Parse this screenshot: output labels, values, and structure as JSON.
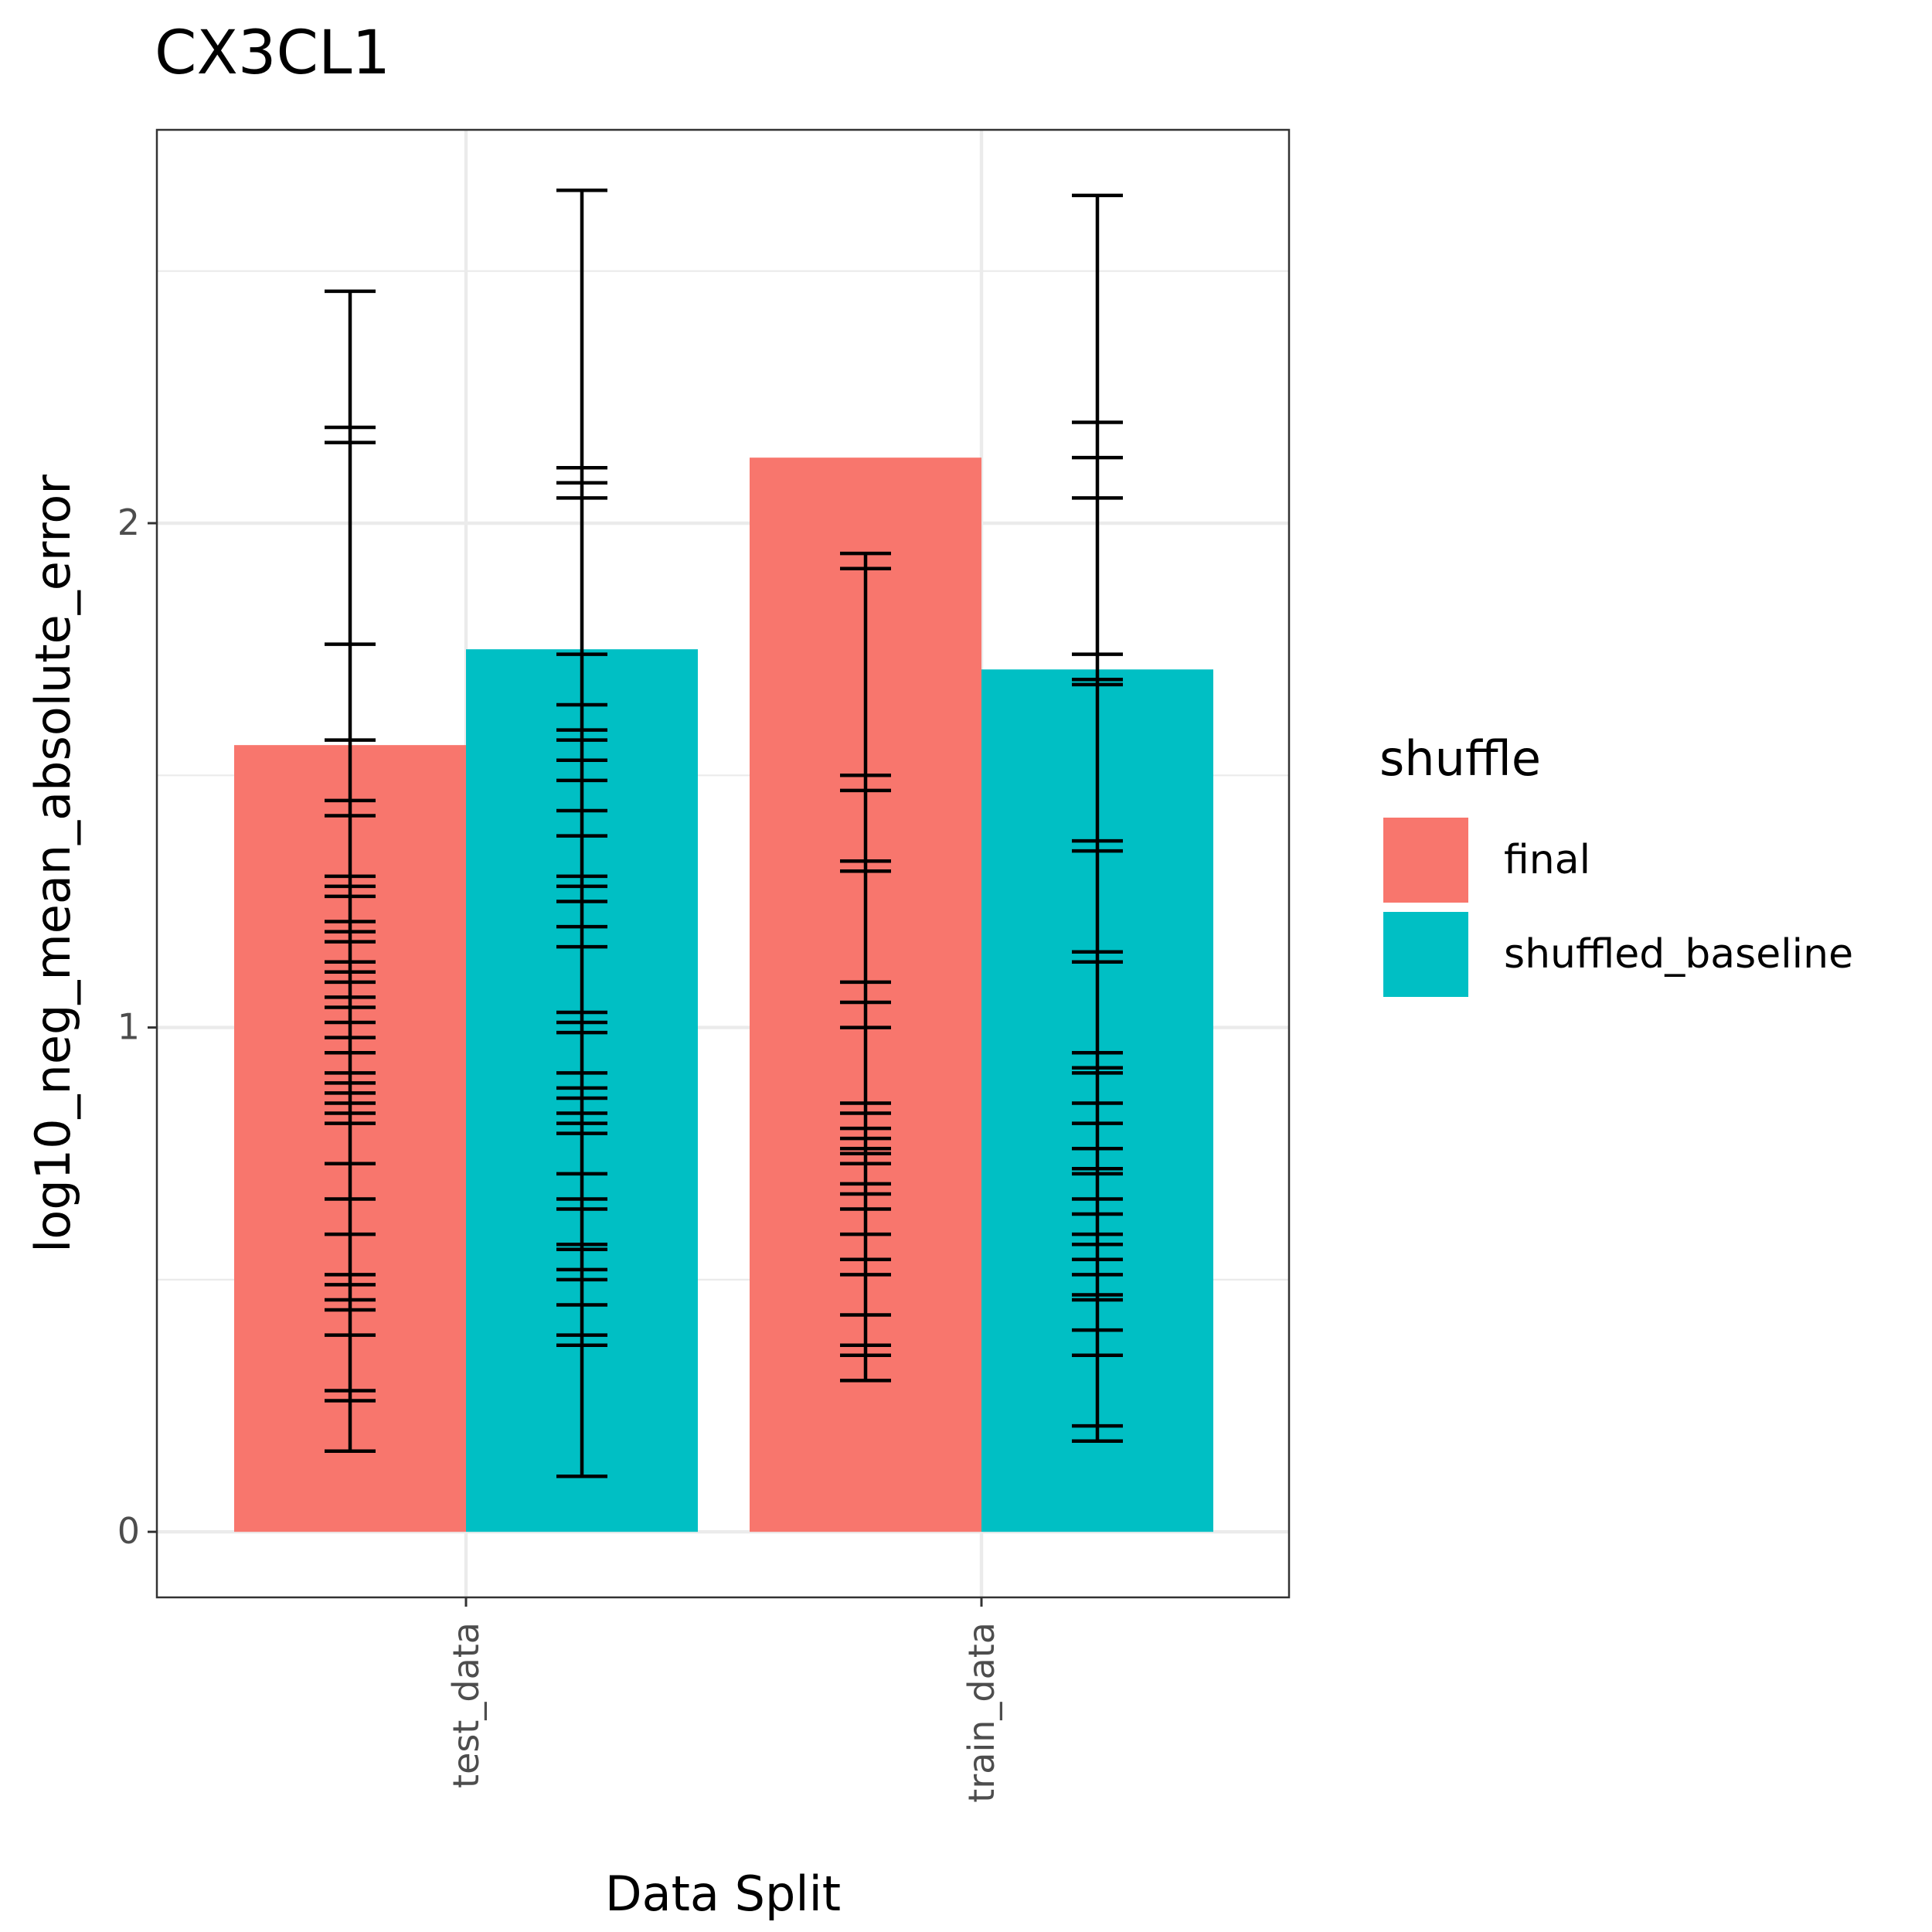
{
  "chart_data": {
    "type": "bar",
    "title": "CX3CL1",
    "xlabel": "Data Split",
    "ylabel": "log10_neg_mean_absolute_error",
    "categories": [
      "test_data",
      "train_data"
    ],
    "yticks": [
      "0",
      "1",
      "2"
    ],
    "ylim": [
      -0.13,
      2.78
    ],
    "grid": true,
    "legend": {
      "title": "shuffle",
      "position": "right"
    },
    "series": [
      {
        "name": "final",
        "color": "#F8766D",
        "values": [
          1.56,
          2.13
        ],
        "errorbars": [
          [
            0.16,
            2.46
          ],
          [
            0.3,
            1.94
          ]
        ],
        "ticks": [
          [
            0.16,
            0.26,
            0.28,
            0.39,
            0.44,
            0.46,
            0.49,
            0.51,
            0.59,
            0.66,
            0.73,
            0.81,
            0.83,
            0.85,
            0.87,
            0.89,
            0.91,
            0.95,
            0.98,
            1.01,
            1.04,
            1.06,
            1.09,
            1.11,
            1.13,
            1.17,
            1.19,
            1.21,
            1.26,
            1.28,
            1.3,
            1.42,
            1.45,
            1.57,
            1.76,
            2.16,
            2.19,
            2.46
          ],
          [
            0.3,
            0.35,
            0.37,
            0.43,
            0.51,
            0.54,
            0.59,
            0.64,
            0.67,
            0.69,
            0.73,
            0.75,
            0.76,
            0.78,
            0.8,
            0.83,
            0.85,
            1.0,
            1.05,
            1.09,
            1.31,
            1.33,
            1.47,
            1.5,
            1.91,
            1.94
          ]
        ]
      },
      {
        "name": "shuffled_baseline",
        "color": "#00BFC4",
        "values": [
          1.75,
          1.71
        ],
        "errorbars": [
          [
            0.11,
            2.66
          ],
          [
            0.18,
            2.65
          ]
        ],
        "ticks": [
          [
            0.11,
            0.37,
            0.39,
            0.45,
            0.5,
            0.52,
            0.56,
            0.57,
            0.64,
            0.66,
            0.71,
            0.79,
            0.81,
            0.83,
            0.86,
            0.88,
            0.91,
            0.99,
            1.01,
            1.03,
            1.16,
            1.2,
            1.25,
            1.28,
            1.3,
            1.38,
            1.43,
            1.49,
            1.53,
            1.57,
            1.59,
            1.64,
            1.74,
            2.05,
            2.08,
            2.11,
            2.66
          ],
          [
            0.18,
            0.21,
            0.35,
            0.4,
            0.46,
            0.47,
            0.51,
            0.54,
            0.57,
            0.59,
            0.63,
            0.66,
            0.71,
            0.72,
            0.76,
            0.81,
            0.85,
            0.91,
            0.92,
            0.95,
            1.13,
            1.15,
            1.35,
            1.37,
            1.68,
            1.69,
            1.74,
            2.05,
            2.13,
            2.2,
            2.65
          ]
        ]
      }
    ]
  }
}
